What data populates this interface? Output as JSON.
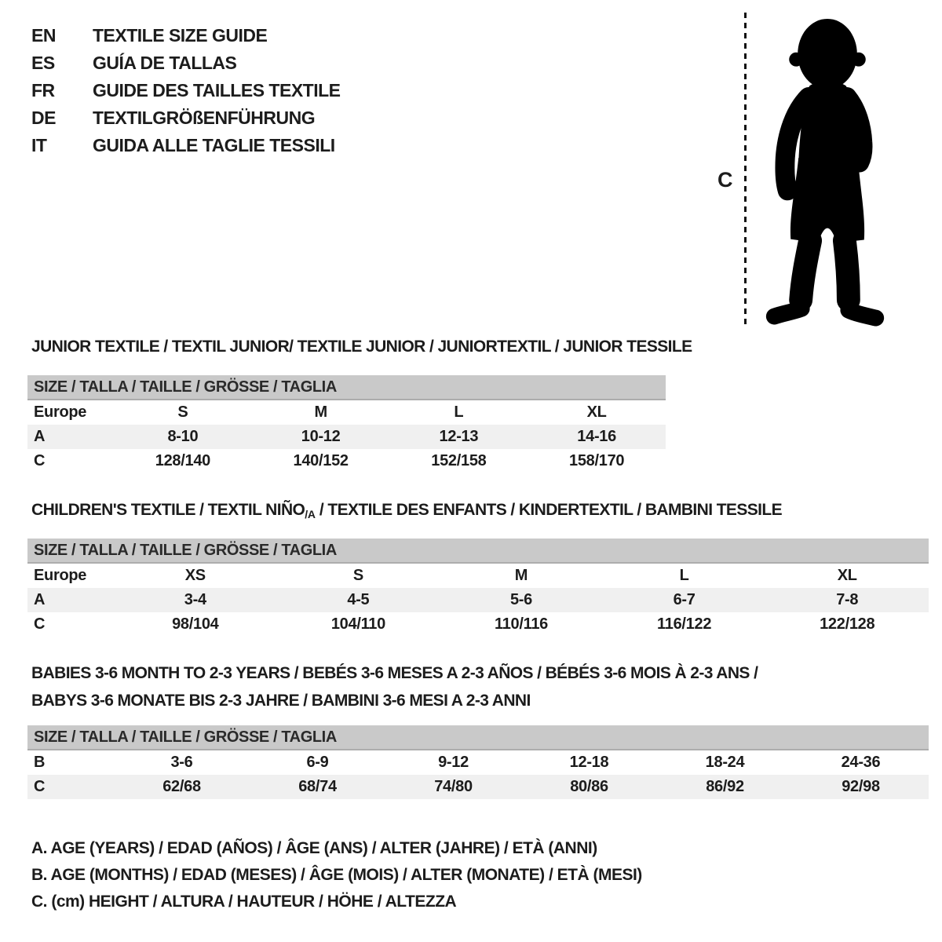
{
  "page": {
    "background": "#ffffff",
    "text_color": "#1c1c1c",
    "header_bar_color": "#c9c9c9",
    "shaded_row_color": "#f0f0f0"
  },
  "languages": [
    {
      "code": "EN",
      "title": "TEXTILE SIZE GUIDE"
    },
    {
      "code": "ES",
      "title": "GUÍA DE TALLAS"
    },
    {
      "code": "FR",
      "title": "GUIDE DES TAILLES TEXTILE"
    },
    {
      "code": "DE",
      "title": "TEXTILGRÖßENFÜHRUNG"
    },
    {
      "code": "IT",
      "title": "GUIDA ALLE TAGLIE TESSILI"
    }
  ],
  "figure": {
    "height_marker_label": "C",
    "image_description": "black silhouette of standing toddler"
  },
  "sections": {
    "junior": {
      "title": "JUNIOR TEXTILE / TEXTIL JUNIOR/ TEXTILE JUNIOR / JUNIORTEXTIL / JUNIOR TESSILE",
      "table": {
        "size_header": "SIZE / TALLA / TAILLE / GRÖSSE / TAGLIA",
        "region_row": {
          "label": "Europe",
          "values": [
            "S",
            "M",
            "L",
            "XL"
          ]
        },
        "rows": [
          {
            "label": "A",
            "values": [
              "8-10",
              "10-12",
              "12-13",
              "14-16"
            ],
            "shaded": true
          },
          {
            "label": "C",
            "values": [
              "128/140",
              "140/152",
              "152/158",
              "158/170"
            ],
            "shaded": false
          }
        ]
      }
    },
    "children": {
      "title_pre": "CHILDREN'S TEXTILE / TEXTIL NIÑO",
      "title_sub": "/A",
      "title_post": " / TEXTILE DES ENFANTS / KINDERTEXTIL / BAMBINI TESSILE",
      "table": {
        "size_header": "SIZE / TALLA / TAILLE / GRÖSSE / TAGLIA",
        "region_row": {
          "label": "Europe",
          "values": [
            "XS",
            "S",
            "M",
            "L",
            "XL"
          ]
        },
        "rows": [
          {
            "label": "A",
            "values": [
              "3-4",
              "4-5",
              "5-6",
              "6-7",
              "7-8"
            ],
            "shaded": true
          },
          {
            "label": "C",
            "values": [
              "98/104",
              "104/110",
              "110/116",
              "116/122",
              "122/128"
            ],
            "shaded": false
          }
        ]
      }
    },
    "babies": {
      "title_line1": "BABIES 3-6 MONTH TO 2-3 YEARS / BEBÉS 3-6 MESES A 2-3 AÑOS / BÉBÉS 3-6 MOIS À 2-3 ANS /",
      "title_line2": "BABYS 3-6 MONATE BIS 2-3 JAHRE / BAMBINI 3-6 MESI A 2-3 ANNI",
      "table": {
        "size_header": "SIZE / TALLA / TAILLE / GRÖSSE / TAGLIA",
        "rows": [
          {
            "label": "B",
            "values": [
              "3-6",
              "6-9",
              "9-12",
              "12-18",
              "18-24",
              "24-36"
            ],
            "shaded": false
          },
          {
            "label": "C",
            "values": [
              "62/68",
              "68/74",
              "74/80",
              "80/86",
              "86/92",
              "92/98"
            ],
            "shaded": true
          }
        ]
      }
    }
  },
  "legend": [
    "A. AGE (YEARS) / EDAD (AÑOS) / ÂGE (ANS) / ALTER (JAHRE) / ETÀ (ANNI)",
    "B. AGE (MONTHS) / EDAD (MESES) / ÂGE (MOIS) / ALTER (MONATE) / ETÀ (MESI)",
    "C. (cm) HEIGHT / ALTURA / HAUTEUR / HÖHE / ALTEZZA"
  ]
}
